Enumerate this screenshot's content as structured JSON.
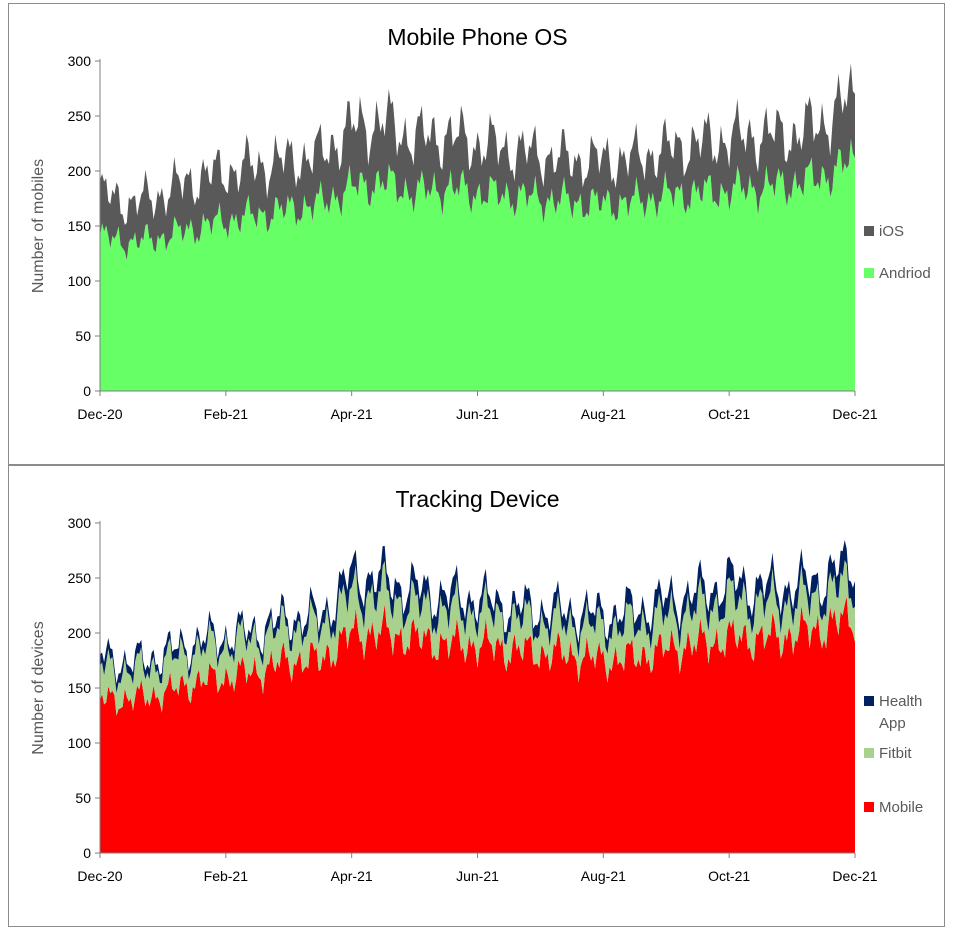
{
  "chart_data": [
    {
      "type": "area",
      "stacked": true,
      "title": "Mobile Phone OS",
      "xlabel": "",
      "ylabel": "Number of mobiles",
      "ylim": [
        0,
        300
      ],
      "yticks": [
        0,
        50,
        100,
        150,
        200,
        250,
        300
      ],
      "xticks": [
        "Dec-20",
        "Feb-21",
        "Apr-21",
        "Jun-21",
        "Aug-21",
        "Oct-21",
        "Dec-21"
      ],
      "xrange": [
        "2020-12-01",
        "2021-12-01"
      ],
      "legend_position": "right",
      "grid": false,
      "x": [
        "2020-12-01",
        "2020-12-15",
        "2021-01-01",
        "2021-01-15",
        "2021-02-01",
        "2021-02-15",
        "2021-03-01",
        "2021-03-15",
        "2021-04-01",
        "2021-04-15",
        "2021-05-01",
        "2021-05-15",
        "2021-06-01",
        "2021-06-15",
        "2021-07-01",
        "2021-07-15",
        "2021-08-01",
        "2021-08-15",
        "2021-09-01",
        "2021-09-15",
        "2021-10-01",
        "2021-10-15",
        "2021-11-01",
        "2021-11-15",
        "2021-12-01"
      ],
      "series": [
        {
          "name": "Andriod",
          "color": "#66ff66",
          "values": [
            140,
            135,
            140,
            148,
            155,
            160,
            165,
            170,
            185,
            190,
            180,
            185,
            180,
            178,
            175,
            172,
            170,
            172,
            178,
            180,
            182,
            185,
            188,
            195,
            210
          ]
        },
        {
          "name": "iOS",
          "color": "#595959",
          "values": [
            40,
            35,
            40,
            45,
            45,
            45,
            45,
            45,
            55,
            55,
            50,
            48,
            45,
            42,
            40,
            38,
            40,
            40,
            42,
            45,
            48,
            48,
            45,
            50,
            60
          ]
        }
      ]
    },
    {
      "type": "area",
      "stacked": true,
      "title": "Tracking Device",
      "xlabel": "",
      "ylabel": "Number of devices",
      "ylim": [
        0,
        300
      ],
      "yticks": [
        0,
        50,
        100,
        150,
        200,
        250,
        300
      ],
      "xticks": [
        "Dec-20",
        "Feb-21",
        "Apr-21",
        "Jun-21",
        "Aug-21",
        "Oct-21",
        "Dec-21"
      ],
      "xrange": [
        "2020-12-01",
        "2021-12-01"
      ],
      "legend_position": "right",
      "grid": false,
      "x": [
        "2020-12-01",
        "2020-12-15",
        "2021-01-01",
        "2021-01-15",
        "2021-02-01",
        "2021-02-15",
        "2021-03-01",
        "2021-03-15",
        "2021-04-01",
        "2021-04-15",
        "2021-05-01",
        "2021-05-15",
        "2021-06-01",
        "2021-06-15",
        "2021-07-01",
        "2021-07-15",
        "2021-08-01",
        "2021-08-15",
        "2021-09-01",
        "2021-09-15",
        "2021-10-01",
        "2021-10-15",
        "2021-11-01",
        "2021-11-15",
        "2021-12-01"
      ],
      "series": [
        {
          "name": "Mobile",
          "color": "#ff0000",
          "values": [
            140,
            140,
            145,
            155,
            160,
            165,
            175,
            175,
            200,
            200,
            195,
            190,
            190,
            185,
            182,
            180,
            175,
            178,
            185,
            190,
            195,
            195,
            198,
            205,
            215
          ]
        },
        {
          "name": "Fitbit",
          "color": "#a9d18e",
          "values": [
            30,
            25,
            28,
            30,
            30,
            30,
            30,
            30,
            35,
            35,
            30,
            30,
            30,
            28,
            28,
            28,
            30,
            30,
            30,
            32,
            35,
            32,
            30,
            30,
            32
          ]
        },
        {
          "name": "Health App",
          "color": "#002060",
          "values": [
            10,
            8,
            8,
            8,
            8,
            8,
            10,
            10,
            18,
            15,
            15,
            15,
            12,
            12,
            12,
            12,
            12,
            13,
            15,
            15,
            17,
            15,
            15,
            15,
            20
          ]
        }
      ]
    }
  ]
}
